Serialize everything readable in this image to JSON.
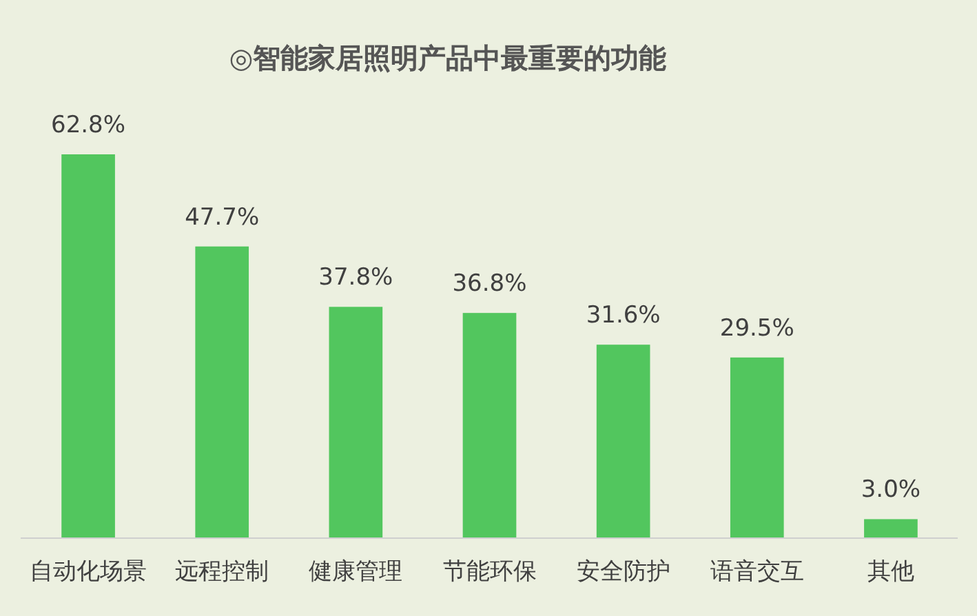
{
  "chart_data": {
    "type": "bar",
    "title": "◎智能家居照明产品中最重要的功能",
    "categories": [
      "自动化场景",
      "远程控制",
      "健康管理",
      "节能环保",
      "安全防护",
      "语音交互",
      "其他"
    ],
    "values": [
      62.8,
      47.7,
      37.8,
      36.8,
      31.6,
      29.5,
      3.0
    ],
    "value_labels": [
      "62.8%",
      "47.7%",
      "37.8%",
      "36.8%",
      "31.6%",
      "29.5%",
      "3.0%"
    ],
    "color": "#52c65e"
  }
}
